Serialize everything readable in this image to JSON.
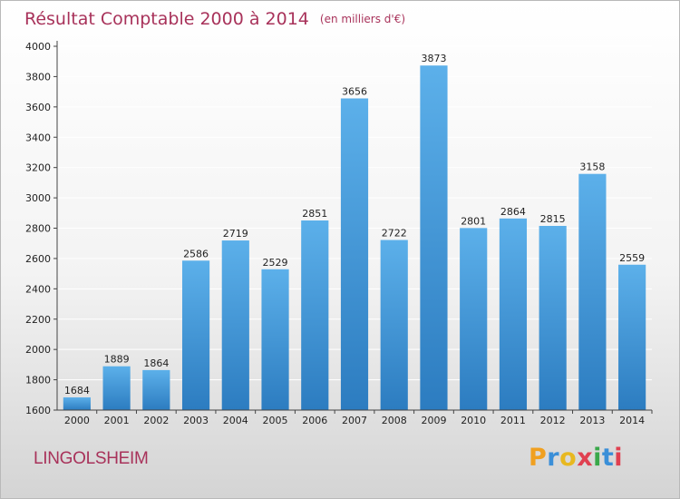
{
  "chart_data": {
    "type": "bar",
    "title": "Résultat Comptable 2000 à 2014",
    "subtitle": "(en milliers d'€)",
    "xlabel": "",
    "ylabel": "",
    "categories": [
      "2000",
      "2001",
      "2002",
      "2003",
      "2004",
      "2005",
      "2006",
      "2007",
      "2008",
      "2009",
      "2010",
      "2011",
      "2012",
      "2013",
      "2014"
    ],
    "values": [
      1684,
      1889,
      1864,
      2586,
      2719,
      2529,
      2851,
      3656,
      2722,
      3873,
      2801,
      2864,
      2815,
      3158,
      2559
    ],
    "ylim": [
      1600,
      4000
    ],
    "yticks": [
      1600,
      1800,
      2000,
      2200,
      2400,
      2600,
      2800,
      3000,
      3200,
      3400,
      3600,
      3800,
      4000
    ],
    "grid": true,
    "bar_color": "#4a9fdb",
    "title_color": "#a8325a"
  },
  "footer": {
    "town": "LINGOLSHEIM",
    "brand": {
      "letters": [
        "P",
        "r",
        "o",
        "x",
        "i",
        "t",
        "i"
      ],
      "colors": [
        "#f0a020",
        "#3a8fd8",
        "#e8b820",
        "#e04050",
        "#3aa84a",
        "#3a8fd8",
        "#e04050"
      ]
    }
  }
}
